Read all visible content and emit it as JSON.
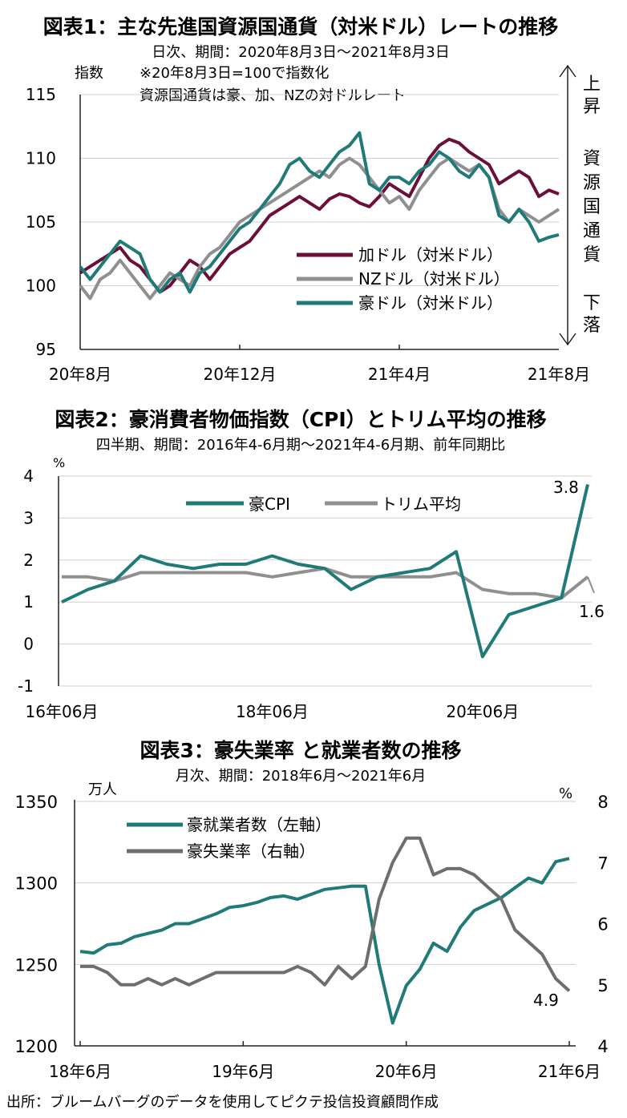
{
  "source": "出所：ブルームバーグのデータを使用してピクテ投信投資顧問作成",
  "chart_data": [
    {
      "type": "line",
      "title": "図表1：主な先進国資源国通貨（対米ドル）レートの推移",
      "subtitle": "日次、期間：2020年8月3日～2021年8月3日",
      "ylabel": "指数",
      "notes": [
        "※20年8月3日=100で指数化",
        "資源国通貨は豪、加、NZの対ドルレート"
      ],
      "ylim": [
        95,
        115
      ],
      "yticks": [
        95,
        100,
        105,
        110,
        115
      ],
      "xlim": [
        0,
        12
      ],
      "x_tick_labels": [
        {
          "x": 0,
          "label": "20年8月"
        },
        {
          "x": 4,
          "label": "20年12月"
        },
        {
          "x": 8,
          "label": "21年4月"
        },
        {
          "x": 12,
          "label": "21年8月"
        }
      ],
      "right_annotation": {
        "up": "上昇",
        "middle": "資源国通貨",
        "down": "下落"
      },
      "colors": {
        "cad": "#6b0f3a",
        "nzd": "#8f8f8f",
        "aud": "#1f7a78"
      },
      "series": [
        {
          "key": "cad",
          "name": "加ドル（対米ドル）",
          "x": [
            0,
            0.25,
            0.5,
            0.75,
            1.0,
            1.25,
            1.5,
            1.75,
            2.0,
            2.25,
            2.5,
            2.75,
            3.0,
            3.25,
            3.5,
            3.75,
            4.0,
            4.25,
            4.5,
            4.75,
            5.0,
            5.25,
            5.5,
            5.75,
            6.0,
            6.25,
            6.5,
            6.75,
            7.0,
            7.25,
            7.5,
            7.75,
            8.0,
            8.25,
            8.5,
            8.75,
            9.0,
            9.25,
            9.5,
            9.75,
            10.0,
            10.25,
            10.5,
            10.75,
            11.0,
            11.25,
            11.5,
            11.75,
            12.0
          ],
          "y": [
            101.0,
            101.5,
            102.0,
            102.5,
            103.0,
            102.0,
            101.5,
            100.5,
            99.5,
            100.0,
            101.0,
            102.0,
            101.5,
            100.5,
            101.5,
            102.5,
            103.0,
            103.5,
            104.5,
            105.5,
            106.0,
            106.5,
            107.0,
            106.5,
            106.0,
            106.8,
            107.2,
            107.0,
            106.5,
            106.2,
            107.0,
            108.0,
            107.5,
            107.0,
            108.5,
            110.0,
            111.0,
            111.5,
            111.2,
            110.5,
            110.0,
            109.5,
            108.0,
            108.5,
            109.0,
            108.5,
            107.0,
            107.5,
            107.2
          ]
        },
        {
          "key": "nzd",
          "name": "NZドル（対米ドル）",
          "x": [
            0,
            0.25,
            0.5,
            0.75,
            1.0,
            1.25,
            1.5,
            1.75,
            2.0,
            2.25,
            2.5,
            2.75,
            3.0,
            3.25,
            3.5,
            3.75,
            4.0,
            4.25,
            4.5,
            4.75,
            5.0,
            5.25,
            5.5,
            5.75,
            6.0,
            6.25,
            6.5,
            6.75,
            7.0,
            7.25,
            7.5,
            7.75,
            8.0,
            8.25,
            8.5,
            8.75,
            9.0,
            9.25,
            9.5,
            9.75,
            10.0,
            10.25,
            10.5,
            10.75,
            11.0,
            11.25,
            11.5,
            11.75,
            12.0
          ],
          "y": [
            100.0,
            99.0,
            100.5,
            101.0,
            102.0,
            101.0,
            100.0,
            99.0,
            100.0,
            101.0,
            100.5,
            100.0,
            101.5,
            102.5,
            103.0,
            104.0,
            105.0,
            105.5,
            106.0,
            106.5,
            107.0,
            107.5,
            108.0,
            108.5,
            109.0,
            108.5,
            109.5,
            110.0,
            109.5,
            108.5,
            107.5,
            106.5,
            107.0,
            106.0,
            107.5,
            108.5,
            109.5,
            110.0,
            109.5,
            109.0,
            109.5,
            108.5,
            106.0,
            105.0,
            106.0,
            105.5,
            105.0,
            105.5,
            106.0
          ]
        },
        {
          "key": "aud",
          "name": "豪ドル（対米ドル）",
          "x": [
            0,
            0.25,
            0.5,
            0.75,
            1.0,
            1.25,
            1.5,
            1.75,
            2.0,
            2.25,
            2.5,
            2.75,
            3.0,
            3.25,
            3.5,
            3.75,
            4.0,
            4.25,
            4.5,
            4.75,
            5.0,
            5.25,
            5.5,
            5.75,
            6.0,
            6.25,
            6.5,
            6.75,
            7.0,
            7.25,
            7.5,
            7.75,
            8.0,
            8.25,
            8.5,
            8.75,
            9.0,
            9.25,
            9.5,
            9.75,
            10.0,
            10.25,
            10.5,
            10.75,
            11.0,
            11.25,
            11.5,
            11.75,
            12.0
          ],
          "y": [
            101.5,
            100.5,
            101.5,
            102.5,
            103.5,
            103.0,
            102.5,
            100.5,
            99.5,
            100.5,
            101.0,
            99.5,
            101.0,
            101.5,
            102.5,
            103.5,
            104.5,
            105.0,
            106.0,
            107.0,
            108.0,
            109.5,
            110.0,
            109.0,
            108.5,
            109.5,
            110.5,
            111.0,
            112.0,
            108.0,
            107.5,
            108.5,
            108.5,
            108.0,
            109.0,
            109.5,
            110.5,
            110.0,
            109.0,
            108.5,
            109.5,
            108.5,
            105.5,
            105.0,
            106.0,
            105.0,
            103.5,
            103.8,
            104.0
          ]
        }
      ]
    },
    {
      "type": "line",
      "title": "図表2：豪消費者物価指数（CPI）とトリム平均の推移",
      "subtitle": "四半期、期間：2016年4-6月期～2021年4-6月期、前年同期比",
      "ylabel": "%",
      "ylim": [
        -1,
        4
      ],
      "yticks": [
        -1,
        0,
        1,
        2,
        3,
        4
      ],
      "xlim": [
        0,
        20
      ],
      "x_tick_labels": [
        {
          "x": 0,
          "label": "16年06月"
        },
        {
          "x": 8,
          "label": "18年06月"
        },
        {
          "x": 16,
          "label": "20年06月"
        }
      ],
      "data_labels": {
        "cpi_last": "3.8",
        "trim_last": "1.6"
      },
      "colors": {
        "cpi": "#1f7a78",
        "trim": "#8f8f8f"
      },
      "series": [
        {
          "key": "cpi",
          "name": "豪CPI",
          "x": [
            0,
            1,
            2,
            3,
            4,
            5,
            6,
            7,
            8,
            9,
            10,
            11,
            12,
            13,
            14,
            15,
            16,
            17,
            18,
            19,
            20
          ],
          "y": [
            1.0,
            1.3,
            1.5,
            2.1,
            1.9,
            1.8,
            1.9,
            1.9,
            2.1,
            1.9,
            1.8,
            1.3,
            1.6,
            1.7,
            1.8,
            2.2,
            -0.3,
            0.7,
            0.9,
            1.1,
            3.8
          ]
        },
        {
          "key": "trim",
          "name": "トリム平均",
          "x": [
            0,
            1,
            2,
            3,
            4,
            5,
            6,
            7,
            8,
            9,
            10,
            11,
            12,
            13,
            14,
            15,
            16,
            17,
            18,
            19,
            20
          ],
          "y": [
            1.6,
            1.6,
            1.5,
            1.7,
            1.7,
            1.7,
            1.7,
            1.7,
            1.6,
            1.7,
            1.8,
            1.6,
            1.6,
            1.6,
            1.6,
            1.7,
            1.3,
            1.2,
            1.2,
            1.1,
            1.6
          ]
        }
      ]
    },
    {
      "type": "line",
      "title": "図表3：豪失業率 と就業者数の推移",
      "subtitle": "月次、期間：2018年6月～2021年6月",
      "ylabel": "万人",
      "y2label": "%",
      "ylim": [
        1200,
        1350
      ],
      "yticks": [
        1200,
        1250,
        1300,
        1350
      ],
      "y2lim": [
        4,
        8
      ],
      "y2ticks": [
        4,
        5,
        6,
        7,
        8
      ],
      "xlim": [
        0,
        36
      ],
      "x_tick_labels": [
        {
          "x": 0,
          "label": "18年6月"
        },
        {
          "x": 12,
          "label": "19年6月"
        },
        {
          "x": 24,
          "label": "20年6月"
        },
        {
          "x": 36,
          "label": "21年6月"
        }
      ],
      "data_labels": {
        "unemp_last": "4.9"
      },
      "colors": {
        "employed": "#1f7a78",
        "unemp": "#6e6e6e"
      },
      "series": [
        {
          "key": "employed",
          "name": "豪就業者数（左軸）",
          "axis": "left",
          "x": [
            0,
            1,
            2,
            3,
            4,
            5,
            6,
            7,
            8,
            9,
            10,
            11,
            12,
            13,
            14,
            15,
            16,
            17,
            18,
            19,
            20,
            21,
            22,
            23,
            24,
            25,
            26,
            27,
            28,
            29,
            30,
            31,
            32,
            33,
            34,
            35,
            36
          ],
          "y": [
            1258,
            1257,
            1262,
            1263,
            1267,
            1269,
            1271,
            1275,
            1275,
            1278,
            1281,
            1285,
            1286,
            1288,
            1291,
            1292,
            1290,
            1293,
            1296,
            1297,
            1298,
            1298,
            1250,
            1214,
            1237,
            1247,
            1263,
            1258,
            1273,
            1283,
            1287,
            1291,
            1297,
            1303,
            1300,
            1313,
            1315
          ]
        },
        {
          "key": "unemp",
          "name": "豪失業率（右軸）",
          "axis": "right",
          "x": [
            0,
            1,
            2,
            3,
            4,
            5,
            6,
            7,
            8,
            9,
            10,
            11,
            12,
            13,
            14,
            15,
            16,
            17,
            18,
            19,
            20,
            21,
            22,
            23,
            24,
            25,
            26,
            27,
            28,
            29,
            30,
            31,
            32,
            33,
            34,
            35,
            36
          ],
          "y": [
            5.3,
            5.3,
            5.2,
            5.0,
            5.0,
            5.1,
            5.0,
            5.1,
            5.0,
            5.1,
            5.2,
            5.2,
            5.2,
            5.2,
            5.2,
            5.2,
            5.3,
            5.2,
            5.0,
            5.3,
            5.1,
            5.3,
            6.4,
            7.0,
            7.4,
            7.4,
            6.8,
            6.9,
            6.9,
            6.8,
            6.6,
            6.4,
            5.9,
            5.7,
            5.5,
            5.1,
            4.9
          ]
        }
      ]
    }
  ]
}
